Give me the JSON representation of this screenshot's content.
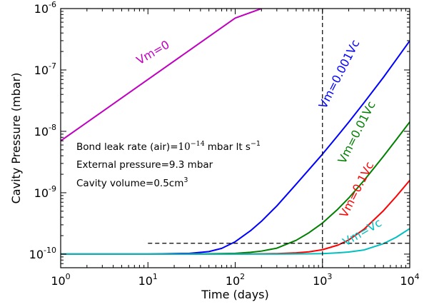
{
  "chart_data": {
    "type": "line",
    "xlabel": "Time (days)",
    "ylabel": "Cavity Pressure (mbar)",
    "xscale": "log",
    "yscale": "log",
    "xlim": [
      1,
      10000
    ],
    "ylim": [
      6e-11,
      1e-06
    ],
    "x_ticks": [
      {
        "value": 1,
        "base": "10",
        "exp": "0"
      },
      {
        "value": 10,
        "base": "10",
        "exp": "1"
      },
      {
        "value": 100,
        "base": "10",
        "exp": "2"
      },
      {
        "value": 1000,
        "base": "10",
        "exp": "3"
      },
      {
        "value": 10000,
        "base": "10",
        "exp": "4"
      }
    ],
    "y_ticks": [
      {
        "value": 1e-10,
        "base": "10",
        "exp": "-10"
      },
      {
        "value": 1e-09,
        "base": "10",
        "exp": "-9"
      },
      {
        "value": 1e-08,
        "base": "10",
        "exp": "-8"
      },
      {
        "value": 1e-07,
        "base": "10",
        "exp": "-7"
      },
      {
        "value": 1e-06,
        "base": "10",
        "exp": "-6"
      }
    ],
    "grid": false,
    "series": [
      {
        "name": "Vm=0",
        "color": "#bf00bf",
        "x": [
          1,
          3,
          10,
          30,
          100,
          200
        ],
        "y": [
          7e-09,
          2.1e-08,
          7e-08,
          2.1e-07,
          7e-07,
          1e-06
        ],
        "label_at": [
          12,
          1.7e-07
        ],
        "label_angle": -30
      },
      {
        "name": "Vm=0.001Vc",
        "color": "#0000ff",
        "x": [
          1,
          10,
          30,
          50,
          70,
          100,
          150,
          200,
          300,
          500,
          700,
          1000,
          1500,
          2000,
          3000,
          5000,
          7000,
          10000
        ],
        "y": [
          1e-10,
          1e-10,
          1.03e-10,
          1.1e-10,
          1.24e-10,
          1.59e-10,
          2.41e-10,
          3.43e-10,
          6.1e-10,
          1.38e-09,
          2.38e-09,
          4.25e-09,
          8.54e-09,
          1.41e-08,
          2.94e-08,
          7.6e-08,
          1.47e-07,
          2.98e-07
        ],
        "label_at": [
          1700,
          8e-08
        ],
        "label_angle": -63
      },
      {
        "name": "Vm=0.01Vc",
        "color": "#008000",
        "x": [
          1,
          30,
          100,
          150,
          200,
          300,
          500,
          700,
          1000,
          1500,
          2000,
          3000,
          5000,
          7000,
          10000
        ],
        "y": [
          1e-10,
          1e-10,
          1.03e-10,
          1.07e-10,
          1.12e-10,
          1.25e-10,
          1.68e-10,
          2.23e-10,
          3.21e-10,
          5.4e-10,
          8.2e-10,
          1.59e-09,
          3.92e-09,
          7.3e-09,
          1.42e-08
        ],
        "label_at": [
          2700,
          9e-09
        ],
        "label_angle": -63
      },
      {
        "name": "Vm=0.1Vc",
        "color": "#ff0000",
        "x": [
          1,
          100,
          200,
          300,
          500,
          700,
          1000,
          1500,
          2000,
          3000,
          5000,
          7000,
          10000
        ],
        "y": [
          1e-10,
          1e-10,
          1.01e-10,
          1.02e-10,
          1.05e-10,
          1.09e-10,
          1.18e-10,
          1.4e-10,
          1.7e-10,
          2.55e-10,
          5.1e-10,
          8.7e-10,
          1.59e-09
        ],
        "label_at": [
          2700,
          1.05e-09
        ],
        "label_angle": -63
      },
      {
        "name": "Vm=Vc",
        "color": "#00bfbf",
        "x": [
          1,
          300,
          700,
          1000,
          1500,
          2000,
          3000,
          5000,
          7000,
          10000
        ],
        "y": [
          1e-10,
          1e-10,
          1.01e-10,
          1.02e-10,
          1.05e-10,
          1.08e-10,
          1.17e-10,
          1.48e-10,
          1.88e-10,
          2.6e-10
        ],
        "label_at": [
          3000,
          2e-10
        ],
        "label_angle": -30
      }
    ],
    "reference_lines": [
      {
        "orientation": "vertical",
        "x": 1000,
        "style": "dashed"
      },
      {
        "orientation": "horizontal",
        "y": 1.5e-10,
        "x_from": 10,
        "x_to": 10000,
        "style": "dashed"
      }
    ],
    "annotations": {
      "leak_rate_prefix": "Bond leak rate (air)=",
      "leak_rate_value": "10",
      "leak_rate_exp": "−14",
      "leak_rate_units": "mbar lt s",
      "leak_rate_units_exp": "−1",
      "external_pressure": "External pressure=9.3 mbar",
      "cavity_volume_prefix": "Cavity volume=0.5cm",
      "cavity_volume_exp": "3"
    }
  }
}
